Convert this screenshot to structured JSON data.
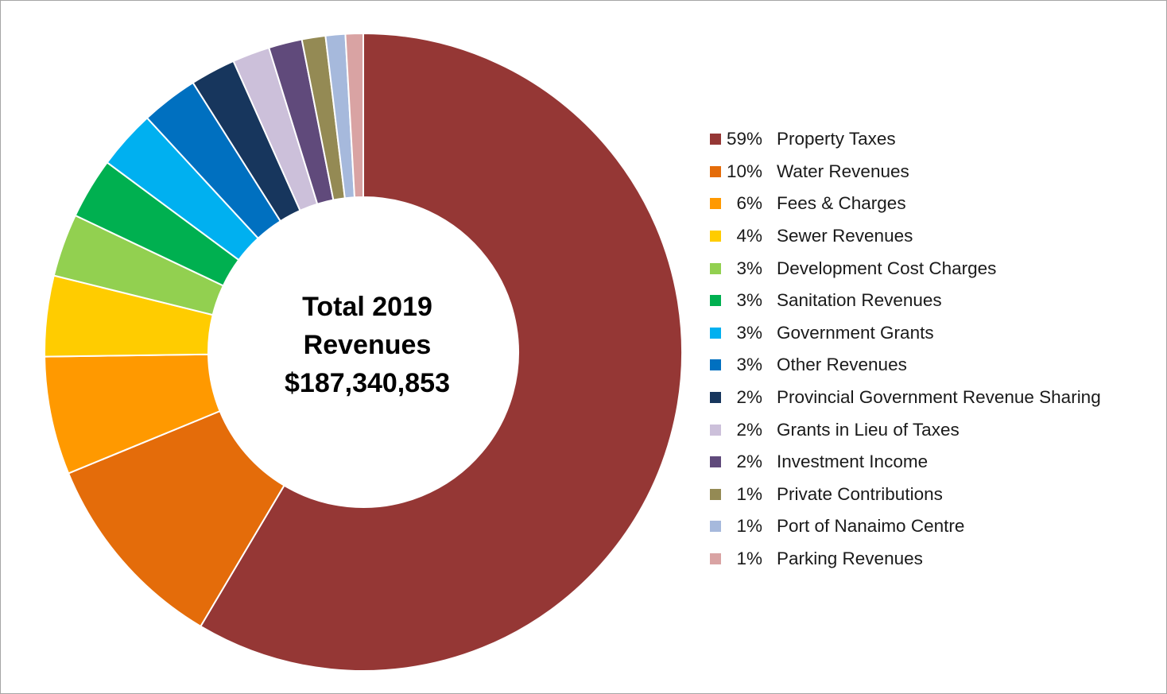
{
  "chart_data": {
    "type": "pie",
    "variant": "donut",
    "center_text": [
      "Total 2019",
      "Revenues",
      "$187,340,853"
    ],
    "legend_position": "right",
    "slices": [
      {
        "label": "Property Taxes",
        "pct_label": "59%",
        "value": 58.7,
        "color": "#953735"
      },
      {
        "label": "Water Revenues",
        "pct_label": "10%",
        "value": 10.3,
        "color": "#E46C0A"
      },
      {
        "label": "Fees & Charges",
        "pct_label": "6%",
        "value": 6.0,
        "color": "#FF9900"
      },
      {
        "label": "Sewer Revenues",
        "pct_label": "4%",
        "value": 4.1,
        "color": "#FFCC00"
      },
      {
        "label": "Development Cost Charges",
        "pct_label": "3%",
        "value": 3.2,
        "color": "#92D050"
      },
      {
        "label": "Sanitation Revenues",
        "pct_label": "3%",
        "value": 3.1,
        "color": "#00B050"
      },
      {
        "label": "Government Grants",
        "pct_label": "3%",
        "value": 3.0,
        "color": "#00B0F0"
      },
      {
        "label": "Other Revenues",
        "pct_label": "3%",
        "value": 2.9,
        "color": "#0070C0"
      },
      {
        "label": "Provincial Government Revenue Sharing",
        "pct_label": "2%",
        "value": 2.3,
        "color": "#17365D"
      },
      {
        "label": "Grants in Lieu of Taxes",
        "pct_label": "2%",
        "value": 1.9,
        "color": "#CCC0DA"
      },
      {
        "label": "Investment Income",
        "pct_label": "2%",
        "value": 1.7,
        "color": "#604A7B"
      },
      {
        "label": "Private Contributions",
        "pct_label": "1%",
        "value": 1.2,
        "color": "#948A54"
      },
      {
        "label": "Port of Nanaimo Centre",
        "pct_label": "1%",
        "value": 1.0,
        "color": "#A6B9DC"
      },
      {
        "label": "Parking Revenues",
        "pct_label": "1%",
        "value": 0.9,
        "color": "#D9A3A3"
      }
    ]
  }
}
